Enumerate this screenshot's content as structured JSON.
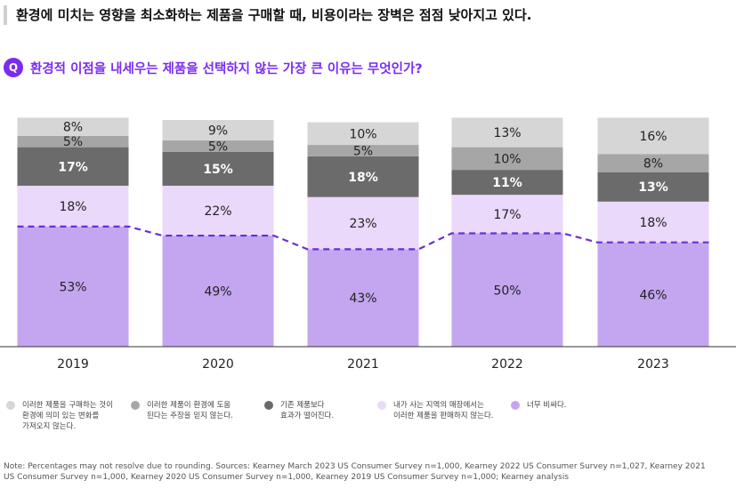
{
  "headline": "환경에 미치는 영향을 최소화하는 제품을 구매할 때, 비용이라는 장벽은 점점 낮아지고 있다.",
  "question": {
    "icon_letter": "Q",
    "text": "환경적 이점을 내세우는 제품을 선택하지 않는 가장 큰 이유는 무엇인가?"
  },
  "colors": {
    "accent": "#7b2cf0",
    "dashed_line": "#6a2fd6"
  },
  "chart_data": {
    "type": "bar",
    "stacked": true,
    "categories": [
      "2019",
      "2020",
      "2021",
      "2022",
      "2023"
    ],
    "series": [
      {
        "name": "너무 비싸다.",
        "color": "#c4a6f0",
        "values": [
          53,
          49,
          43,
          50,
          46
        ]
      },
      {
        "name": "내가 사는 지역의 매장에서는 이러한 제품을 판매하지 않는다.",
        "color": "#ead9fb",
        "values": [
          18,
          22,
          23,
          17,
          18
        ]
      },
      {
        "name": "기존 제품보다 효과가 떨어진다.",
        "color": "#6b6b6b",
        "values": [
          17,
          15,
          18,
          11,
          13
        ]
      },
      {
        "name": "이러한 제품이 환경에 도움 된다는 주장을 믿지 않는다.",
        "color": "#a6a6a6",
        "values": [
          5,
          5,
          5,
          10,
          8
        ]
      },
      {
        "name": "이러한 제품을 구매하는 것이 환경에 의미 있는 변화를 가져오지 않는다.",
        "color": "#d6d6d6",
        "values": [
          8,
          9,
          10,
          13,
          16
        ]
      }
    ],
    "value_suffix": "%",
    "dashed_line_series": "너무 비싸다.",
    "grid": false,
    "legend_position": "bottom"
  },
  "legend": [
    {
      "label": "이러한 제품을 구매하는 것이\n환경에 의미 있는 변화를\n가져오지 않는다.",
      "color": "#d6d6d6"
    },
    {
      "label": "이러한 제품이 환경에 도움\n된다는 주장을 믿지 않는다.",
      "color": "#a6a6a6"
    },
    {
      "label": "기존 제품보다\n효과가 떨어진다.",
      "color": "#6b6b6b"
    },
    {
      "label": "내가 사는 지역의 매장에서는\n이러한 제품을 판매하지 않는다.",
      "color": "#ead9fb"
    },
    {
      "label": "너무 비싸다.",
      "color": "#c4a6f0"
    }
  ],
  "note": "Note: Percentages may not resolve due to rounding.        Sources: Kearney March 2023 US Consumer Survey n=1,000, Kearney 2022 US Consumer Survey n=1,027, Kearney 2021 US Consumer Survey n=1,000, Kearney 2020 US Consumer Survey n=1,000, Kearney 2019 US Consumer Survey n=1,000; Kearney analysis"
}
